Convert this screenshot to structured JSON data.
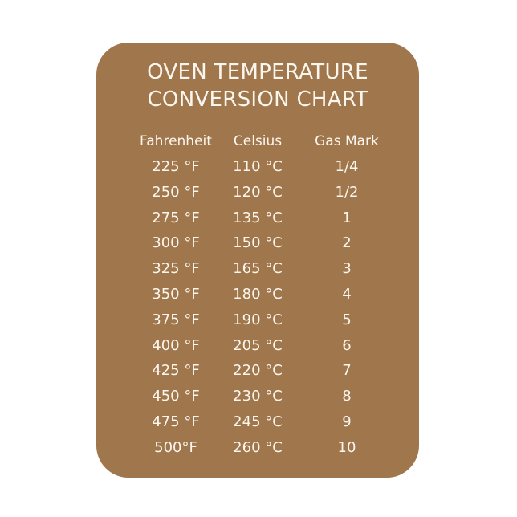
{
  "title_lines": [
    "OVEN TEMPERATURE",
    "CONVERSION CHART"
  ],
  "columns": [
    "Fahrenheit",
    "Celsius",
    "Gas Mark"
  ],
  "rows": [
    [
      "225 °F",
      "110 °C",
      "1/4"
    ],
    [
      "250 °F",
      "120 °C",
      "1/2"
    ],
    [
      "275 °F",
      "135 °C",
      "1"
    ],
    [
      "300 °F",
      "150 °C",
      "2"
    ],
    [
      "325 °F",
      "165 °C",
      "3"
    ],
    [
      "350 °F",
      "180 °C",
      "4"
    ],
    [
      "375 °F",
      "190 °C",
      "5"
    ],
    [
      "400 °F",
      "205 °C",
      "6"
    ],
    [
      "425 °F",
      "220 °C",
      "7"
    ],
    [
      "450 °F",
      "230 °C",
      "8"
    ],
    [
      "475 °F",
      "245 °C",
      "9"
    ],
    [
      "500°F",
      "260 °C",
      "10"
    ]
  ],
  "colors": {
    "card": "#a0764c",
    "text": "#fbf6ee"
  }
}
